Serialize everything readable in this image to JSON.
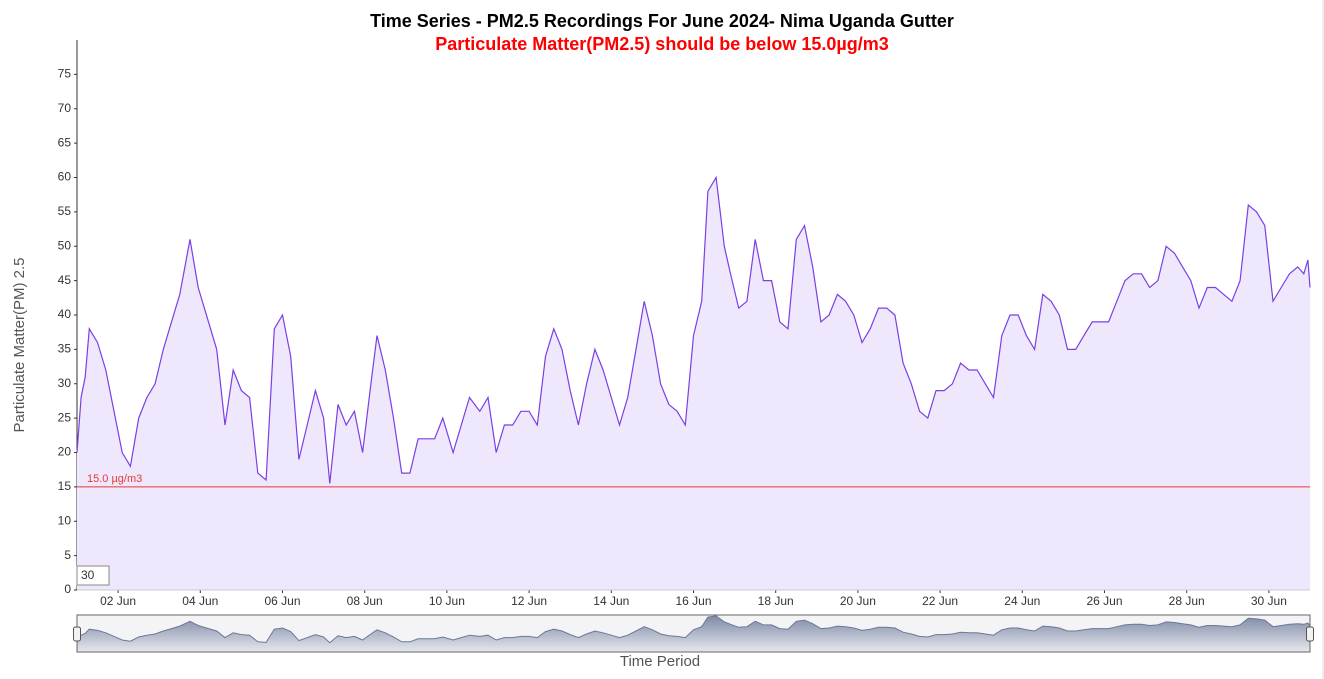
{
  "chart_data": {
    "type": "area",
    "title": "Time Series - PM2.5 Recordings For June 2024- Nima Uganda Gutter",
    "subtitle": "Particulate Matter(PM2.5) should be below 15.0µg/m3",
    "y_label": "Particulate Matter(PM) 2.5",
    "x_label": "Time Period",
    "zoom_input": "30",
    "color": "#7b3fe4",
    "fill": "#efe8fc",
    "threshold": {
      "value": 15,
      "label": "15.0 µg/m3",
      "color": "#e53935"
    },
    "x": [
      1.0,
      1.1,
      1.2,
      1.3,
      1.5,
      1.7,
      1.9,
      2.1,
      2.3,
      2.5,
      2.7,
      2.9,
      3.1,
      3.3,
      3.5,
      3.75,
      3.95,
      4.2,
      4.4,
      4.6,
      4.8,
      5.0,
      5.2,
      5.4,
      5.6,
      5.8,
      6.0,
      6.2,
      6.4,
      6.6,
      6.8,
      7.0,
      7.15,
      7.35,
      7.55,
      7.75,
      7.95,
      8.15,
      8.3,
      8.5,
      8.7,
      8.9,
      9.1,
      9.3,
      9.5,
      9.7,
      9.9,
      10.15,
      10.35,
      10.55,
      10.8,
      11.0,
      11.2,
      11.4,
      11.6,
      11.8,
      12.0,
      12.2,
      12.4,
      12.6,
      12.8,
      13.0,
      13.2,
      13.4,
      13.6,
      13.8,
      14.0,
      14.2,
      14.4,
      14.6,
      14.8,
      15.0,
      15.2,
      15.4,
      15.6,
      15.8,
      16.0,
      16.2,
      16.35,
      16.55,
      16.75,
      16.9,
      17.1,
      17.3,
      17.5,
      17.7,
      17.9,
      18.1,
      18.3,
      18.5,
      18.7,
      18.9,
      19.1,
      19.3,
      19.5,
      19.7,
      19.9,
      20.1,
      20.3,
      20.5,
      20.7,
      20.9,
      21.1,
      21.3,
      21.5,
      21.7,
      21.9,
      22.1,
      22.3,
      22.5,
      22.7,
      22.9,
      23.1,
      23.3,
      23.5,
      23.7,
      23.9,
      24.1,
      24.3,
      24.5,
      24.7,
      24.9,
      25.1,
      25.3,
      25.5,
      25.7,
      25.9,
      26.1,
      26.3,
      26.5,
      26.7,
      26.9,
      27.1,
      27.3,
      27.5,
      27.7,
      27.9,
      28.1,
      28.3,
      28.5,
      28.7,
      28.9,
      29.1,
      29.3,
      29.5,
      29.7,
      29.9,
      30.1,
      30.3,
      30.5,
      30.7,
      30.85,
      30.95,
      31.0
    ],
    "values": [
      20,
      28,
      31,
      38,
      36,
      32,
      26,
      20,
      18,
      25,
      28,
      30,
      35,
      39,
      43,
      51,
      44,
      39,
      35,
      24,
      32,
      29,
      28,
      17,
      16,
      38,
      40,
      34,
      19,
      24,
      29,
      25,
      15.5,
      27,
      24,
      26,
      20,
      30,
      37,
      32,
      25,
      17,
      17,
      22,
      22,
      22,
      25,
      20,
      24,
      28,
      26,
      28,
      20,
      24,
      24,
      26,
      26,
      24,
      34,
      38,
      35,
      29,
      24,
      30,
      35,
      32,
      28,
      24,
      28,
      35,
      42,
      37,
      30,
      27,
      26,
      24,
      37,
      42,
      58,
      60,
      50,
      46,
      41,
      42,
      51,
      45,
      45,
      39,
      38,
      51,
      53,
      47,
      39,
      40,
      43,
      42,
      40,
      36,
      38,
      41,
      41,
      40,
      33,
      30,
      26,
      25,
      29,
      29,
      30,
      33,
      32,
      32,
      30,
      28,
      37,
      40,
      40,
      37,
      35,
      43,
      42,
      40,
      35,
      35,
      37,
      39,
      39,
      39,
      42,
      45,
      46,
      46,
      44,
      45,
      50,
      49,
      47,
      45,
      41,
      44,
      44,
      43,
      42,
      45,
      56,
      55,
      53,
      42,
      44,
      46,
      47,
      46,
      48,
      44
    ],
    "xlim": [
      1,
      31
    ],
    "ylim": [
      0,
      80
    ],
    "xticks": [
      {
        "value": 2,
        "label": "02 Jun"
      },
      {
        "value": 4,
        "label": "04 Jun"
      },
      {
        "value": 6,
        "label": "06 Jun"
      },
      {
        "value": 8,
        "label": "08 Jun"
      },
      {
        "value": 10,
        "label": "10 Jun"
      },
      {
        "value": 12,
        "label": "12 Jun"
      },
      {
        "value": 14,
        "label": "14 Jun"
      },
      {
        "value": 16,
        "label": "16 Jun"
      },
      {
        "value": 18,
        "label": "18 Jun"
      },
      {
        "value": 20,
        "label": "20 Jun"
      },
      {
        "value": 22,
        "label": "22 Jun"
      },
      {
        "value": 24,
        "label": "24 Jun"
      },
      {
        "value": 26,
        "label": "26 Jun"
      },
      {
        "value": 28,
        "label": "28 Jun"
      },
      {
        "value": 30,
        "label": "30 Jun"
      }
    ],
    "yticks": [
      0,
      5,
      10,
      15,
      20,
      25,
      30,
      35,
      40,
      45,
      50,
      55,
      60,
      65,
      70,
      75
    ]
  }
}
